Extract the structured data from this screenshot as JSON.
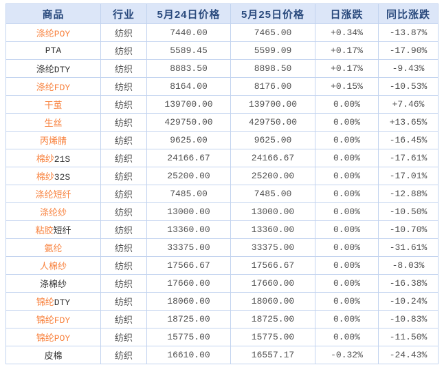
{
  "table": {
    "columns": [
      {
        "key": "name",
        "label": "商品"
      },
      {
        "key": "industry",
        "label": "行业"
      },
      {
        "key": "price_0524",
        "label": "5月24日价格"
      },
      {
        "key": "price_0525",
        "label": "5月25日价格"
      },
      {
        "key": "day_change",
        "label": "日涨跌"
      },
      {
        "key": "yoy_change",
        "label": "同比涨跌"
      }
    ],
    "colors": {
      "header_bg": "#dce6f8",
      "header_text": "#2a4a7d",
      "border": "#c2d3ef",
      "link_orange": "#f8823e",
      "name_dark": "#333333",
      "value_gray": "#4f4f4f",
      "up_red": "#ff0000",
      "down_green": "#008800"
    },
    "rows": [
      {
        "name_link": "涤纶POY",
        "name_rest": "",
        "industry": "纺织",
        "price_0524": "7440.00",
        "price_0525": "7465.00",
        "day_change": "+0.34%",
        "day_trend": "up",
        "yoy_change": "-13.87%",
        "yoy_trend": "down"
      },
      {
        "name_link": "",
        "name_rest": "PTA",
        "industry": "纺织",
        "price_0524": "5589.45",
        "price_0525": "5599.09",
        "day_change": "+0.17%",
        "day_trend": "up",
        "yoy_change": "-17.90%",
        "yoy_trend": "down"
      },
      {
        "name_link": "",
        "name_rest": "涤纶DTY",
        "industry": "纺织",
        "price_0524": "8883.50",
        "price_0525": "8898.50",
        "day_change": "+0.17%",
        "day_trend": "up",
        "yoy_change": "-9.43%",
        "yoy_trend": "down"
      },
      {
        "name_link": "涤纶FDY",
        "name_rest": "",
        "industry": "纺织",
        "price_0524": "8164.00",
        "price_0525": "8176.00",
        "day_change": "+0.15%",
        "day_trend": "up",
        "yoy_change": "-10.53%",
        "yoy_trend": "down"
      },
      {
        "name_link": "干茧",
        "name_rest": "",
        "industry": "纺织",
        "price_0524": "139700.00",
        "price_0525": "139700.00",
        "day_change": "0.00%",
        "day_trend": "flat",
        "yoy_change": "+7.46%",
        "yoy_trend": "up"
      },
      {
        "name_link": "生丝",
        "name_rest": "",
        "industry": "纺织",
        "price_0524": "429750.00",
        "price_0525": "429750.00",
        "day_change": "0.00%",
        "day_trend": "flat",
        "yoy_change": "+13.65%",
        "yoy_trend": "up"
      },
      {
        "name_link": "丙烯腈",
        "name_rest": "",
        "industry": "纺织",
        "price_0524": "9625.00",
        "price_0525": "9625.00",
        "day_change": "0.00%",
        "day_trend": "flat",
        "yoy_change": "-16.45%",
        "yoy_trend": "down"
      },
      {
        "name_link": "棉纱",
        "name_rest": "21S",
        "industry": "纺织",
        "price_0524": "24166.67",
        "price_0525": "24166.67",
        "day_change": "0.00%",
        "day_trend": "flat",
        "yoy_change": "-17.61%",
        "yoy_trend": "down"
      },
      {
        "name_link": "棉纱",
        "name_rest": "32S",
        "industry": "纺织",
        "price_0524": "25200.00",
        "price_0525": "25200.00",
        "day_change": "0.00%",
        "day_trend": "flat",
        "yoy_change": "-17.01%",
        "yoy_trend": "down"
      },
      {
        "name_link": "涤纶短纤",
        "name_rest": "",
        "industry": "纺织",
        "price_0524": "7485.00",
        "price_0525": "7485.00",
        "day_change": "0.00%",
        "day_trend": "flat",
        "yoy_change": "-12.88%",
        "yoy_trend": "down"
      },
      {
        "name_link": "涤纶纱",
        "name_rest": "",
        "industry": "纺织",
        "price_0524": "13000.00",
        "price_0525": "13000.00",
        "day_change": "0.00%",
        "day_trend": "flat",
        "yoy_change": "-10.50%",
        "yoy_trend": "down"
      },
      {
        "name_link": "粘胶",
        "name_rest": "短纤",
        "industry": "纺织",
        "price_0524": "13360.00",
        "price_0525": "13360.00",
        "day_change": "0.00%",
        "day_trend": "flat",
        "yoy_change": "-10.70%",
        "yoy_trend": "down"
      },
      {
        "name_link": "氨纶",
        "name_rest": "",
        "industry": "纺织",
        "price_0524": "33375.00",
        "price_0525": "33375.00",
        "day_change": "0.00%",
        "day_trend": "flat",
        "yoy_change": "-31.61%",
        "yoy_trend": "down"
      },
      {
        "name_link": "人棉纱",
        "name_rest": "",
        "industry": "纺织",
        "price_0524": "17566.67",
        "price_0525": "17566.67",
        "day_change": "0.00%",
        "day_trend": "flat",
        "yoy_change": "-8.03%",
        "yoy_trend": "down"
      },
      {
        "name_link": "",
        "name_rest": "涤棉纱",
        "industry": "纺织",
        "price_0524": "17660.00",
        "price_0525": "17660.00",
        "day_change": "0.00%",
        "day_trend": "flat",
        "yoy_change": "-16.38%",
        "yoy_trend": "down"
      },
      {
        "name_link": "锦纶",
        "name_rest": "DTY",
        "industry": "纺织",
        "price_0524": "18060.00",
        "price_0525": "18060.00",
        "day_change": "0.00%",
        "day_trend": "flat",
        "yoy_change": "-10.24%",
        "yoy_trend": "down"
      },
      {
        "name_link": "锦纶FDY",
        "name_rest": "",
        "industry": "纺织",
        "price_0524": "18725.00",
        "price_0525": "18725.00",
        "day_change": "0.00%",
        "day_trend": "flat",
        "yoy_change": "-10.83%",
        "yoy_trend": "down"
      },
      {
        "name_link": "锦纶POY",
        "name_rest": "",
        "industry": "纺织",
        "price_0524": "15775.00",
        "price_0525": "15775.00",
        "day_change": "0.00%",
        "day_trend": "flat",
        "yoy_change": "-11.50%",
        "yoy_trend": "down"
      },
      {
        "name_link": "",
        "name_rest": "皮棉",
        "industry": "纺织",
        "price_0524": "16610.00",
        "price_0525": "16557.17",
        "day_change": "-0.32%",
        "day_trend": "down",
        "yoy_change": "-24.43%",
        "yoy_trend": "down"
      }
    ]
  }
}
